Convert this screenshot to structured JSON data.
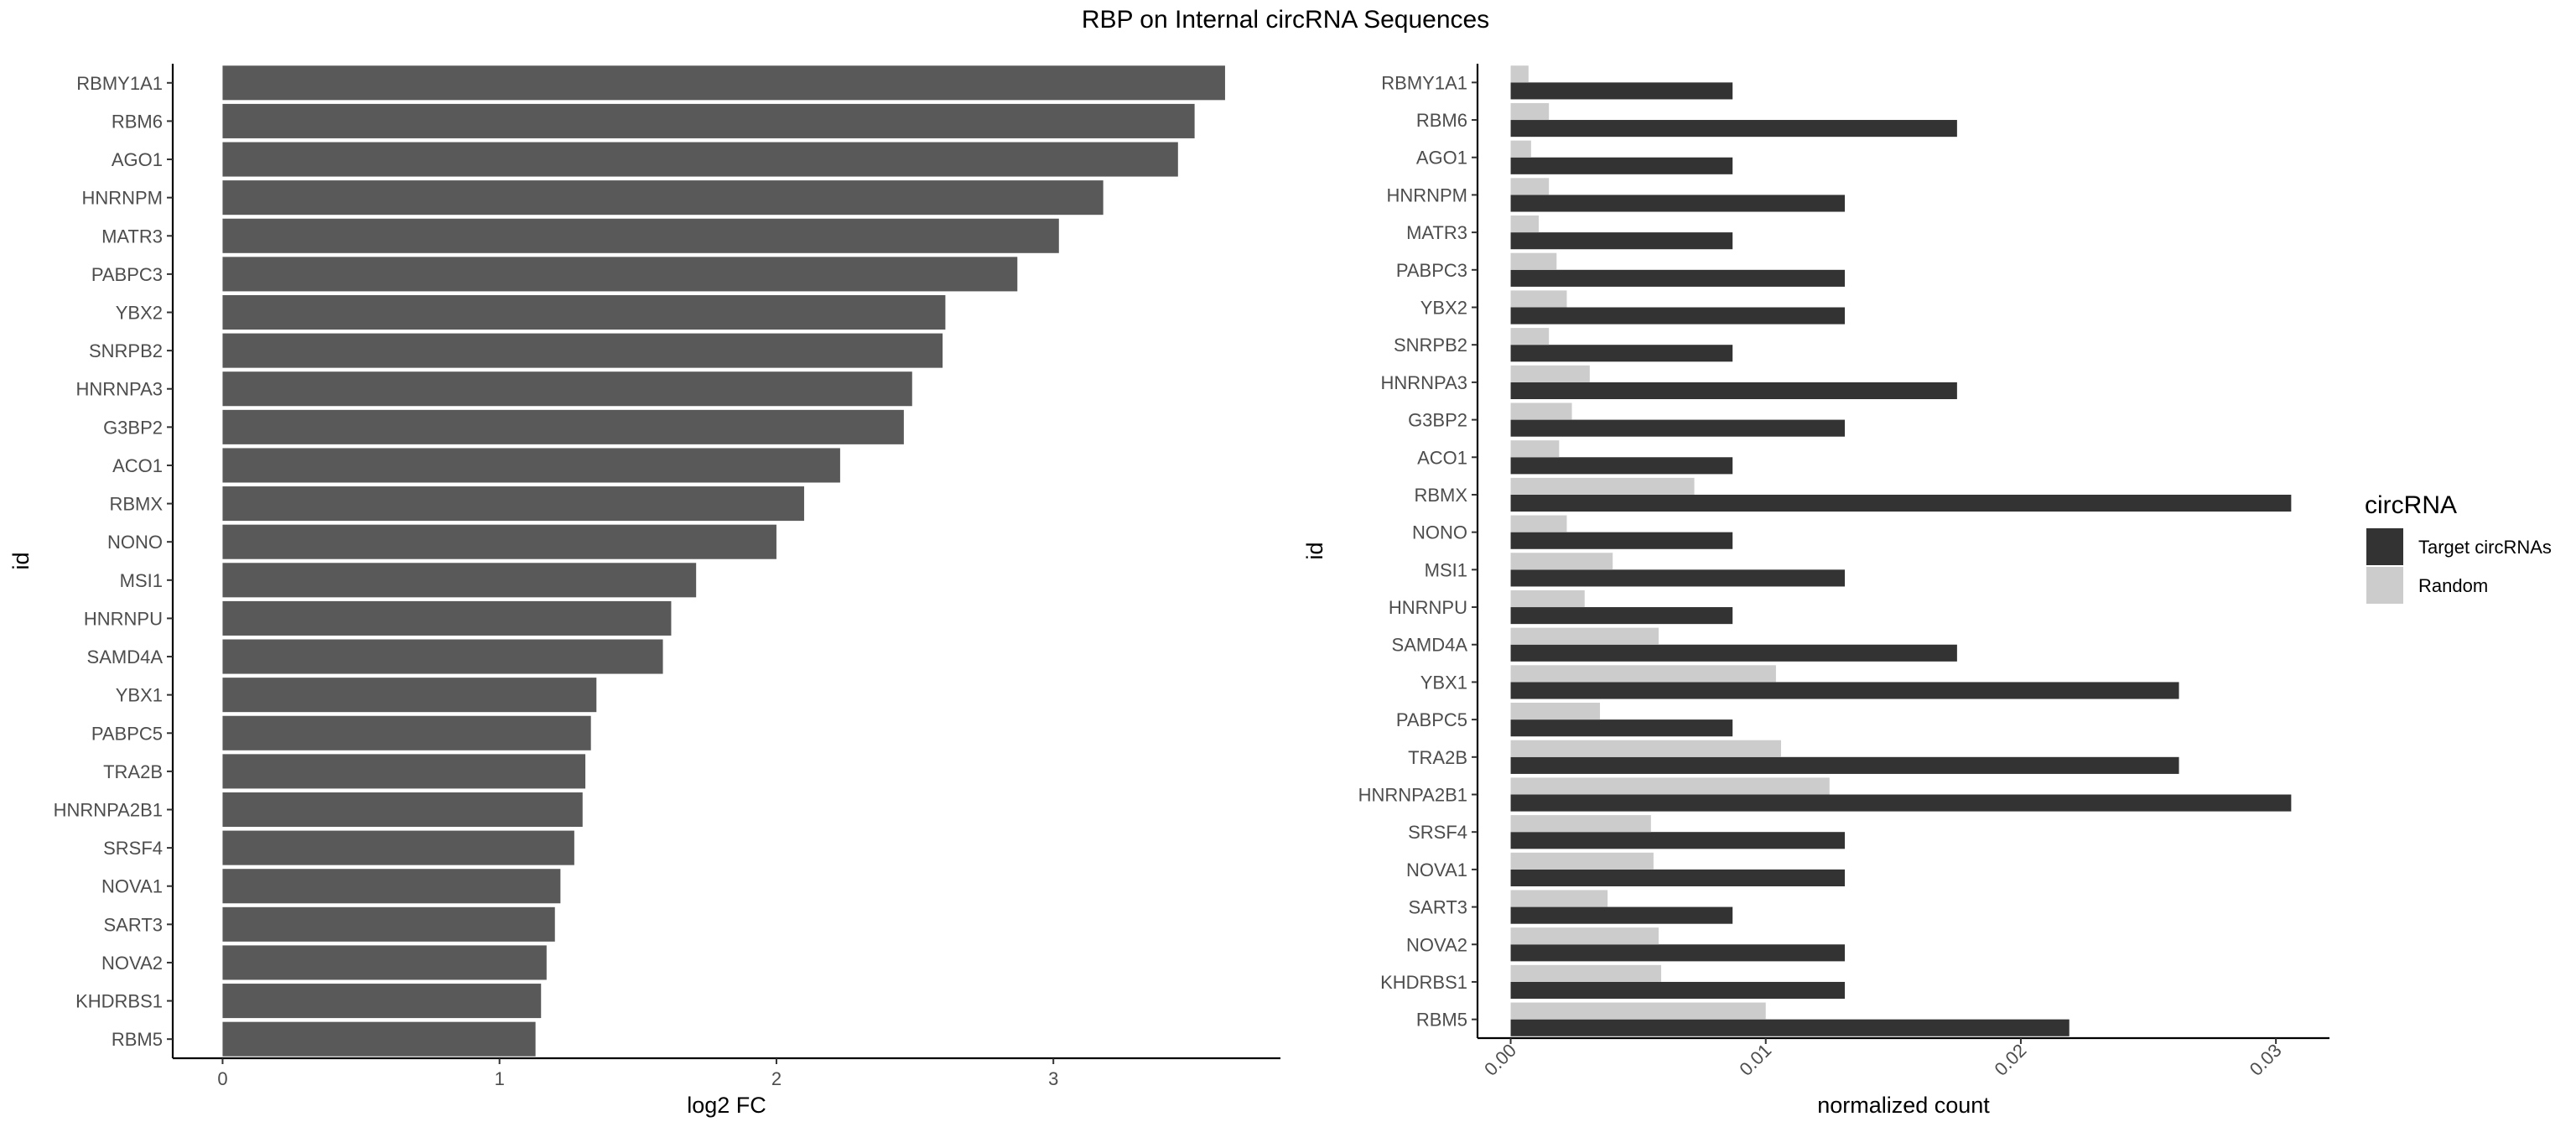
{
  "title": "RBP on Internal circRNA Sequences",
  "chart_data": [
    {
      "type": "bar",
      "orientation": "horizontal",
      "xlabel": "log2 FC",
      "ylabel": "id",
      "xlim": [
        -0.18,
        3.82
      ],
      "xticks": [
        0,
        1,
        2,
        3
      ],
      "xtick_labels": [
        "0",
        "1",
        "2",
        "3"
      ],
      "grid": false,
      "bar_color": "#595959",
      "categories": [
        "RBMY1A1",
        "RBM6",
        "AGO1",
        "HNRNPM",
        "MATR3",
        "PABPC3",
        "YBX2",
        "SNRPB2",
        "HNRNPA3",
        "G3BP2",
        "ACO1",
        "RBMX",
        "NONO",
        "MSI1",
        "HNRNPU",
        "SAMD4A",
        "YBX1",
        "PABPC5",
        "TRA2B",
        "HNRNPA2B1",
        "SRSF4",
        "NOVA1",
        "SART3",
        "NOVA2",
        "KHDRBS1",
        "RBM5"
      ],
      "values": [
        3.62,
        3.51,
        3.45,
        3.18,
        3.02,
        2.87,
        2.61,
        2.6,
        2.49,
        2.46,
        2.23,
        2.1,
        2.0,
        1.71,
        1.62,
        1.59,
        1.35,
        1.33,
        1.31,
        1.3,
        1.27,
        1.22,
        1.2,
        1.17,
        1.15,
        1.13
      ]
    },
    {
      "type": "bar",
      "orientation": "horizontal",
      "xlabel": "normalized count",
      "ylabel": "id",
      "xlim": [
        -0.0013,
        0.0321
      ],
      "xticks": [
        0,
        0.01,
        0.02,
        0.03
      ],
      "xtick_labels": [
        "0.00",
        "0.01",
        "0.02",
        "0.03"
      ],
      "grid": false,
      "legend": {
        "title": "circRNA",
        "position": "right"
      },
      "categories": [
        "RBMY1A1",
        "RBM6",
        "AGO1",
        "HNRNPM",
        "MATR3",
        "PABPC3",
        "YBX2",
        "SNRPB2",
        "HNRNPA3",
        "G3BP2",
        "ACO1",
        "RBMX",
        "NONO",
        "MSI1",
        "HNRNPU",
        "SAMD4A",
        "YBX1",
        "PABPC5",
        "TRA2B",
        "HNRNPA2B1",
        "SRSF4",
        "NOVA1",
        "SART3",
        "NOVA2",
        "KHDRBS1",
        "RBM5"
      ],
      "series": [
        {
          "name": "Target circRNAs",
          "color": "#333333",
          "values": [
            0.0087,
            0.0175,
            0.0087,
            0.0131,
            0.0087,
            0.0131,
            0.0131,
            0.0087,
            0.0175,
            0.0131,
            0.0087,
            0.0306,
            0.0087,
            0.0131,
            0.0087,
            0.0175,
            0.0262,
            0.0087,
            0.0262,
            0.0306,
            0.0131,
            0.0131,
            0.0087,
            0.0131,
            0.0131,
            0.0219
          ]
        },
        {
          "name": "Random",
          "color": "#cccccc",
          "values": [
            0.0007,
            0.0015,
            0.0008,
            0.0015,
            0.0011,
            0.0018,
            0.0022,
            0.0015,
            0.0031,
            0.0024,
            0.0019,
            0.0072,
            0.0022,
            0.004,
            0.0029,
            0.0058,
            0.0104,
            0.0035,
            0.0106,
            0.0125,
            0.0055,
            0.0056,
            0.0038,
            0.0058,
            0.0059,
            0.01
          ]
        }
      ]
    }
  ]
}
